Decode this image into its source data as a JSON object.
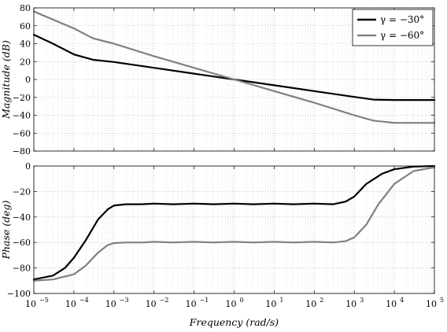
{
  "chart_data": [
    {
      "type": "line",
      "ylabel": "Magnitude (dB)",
      "xscale": "log",
      "xlim": [
        1e-05,
        100000.0
      ],
      "ylim": [
        -80,
        80
      ],
      "yticks": [
        -80,
        -60,
        -40,
        -20,
        0,
        20,
        40,
        60,
        80
      ],
      "ytick_labels": [
        "−80",
        "−60",
        "−40",
        "−20",
        "0",
        "20",
        "40",
        "60",
        "80"
      ],
      "grid": true,
      "legend": "top-right",
      "series": [
        {
          "name": "γ = −30°",
          "color": "#000000",
          "x": [
            1e-05,
            3e-05,
            0.0001,
            0.0003,
            0.001,
            0.01,
            0.1,
            1,
            10,
            100,
            1000,
            3000,
            10000,
            100000
          ],
          "y": [
            50,
            40,
            28,
            22,
            19.5,
            13,
            6.5,
            0,
            -6.5,
            -13,
            -19.5,
            -22.5,
            -23,
            -23
          ]
        },
        {
          "name": "γ = −60°",
          "color": "#808080",
          "x": [
            1e-05,
            0.0001,
            0.0003,
            0.001,
            0.01,
            0.1,
            1,
            10,
            100,
            1000,
            3000,
            10000,
            100000
          ],
          "y": [
            76,
            57,
            46,
            40,
            26,
            13,
            0,
            -13,
            -26,
            -40,
            -46,
            -48.5,
            -48.5
          ]
        }
      ]
    },
    {
      "type": "line",
      "xlabel": "Frequency (rad/s)",
      "ylabel": "Phase (deg)",
      "xscale": "log",
      "xlim": [
        1e-05,
        100000.0
      ],
      "ylim": [
        -100,
        0
      ],
      "yticks": [
        -100,
        -80,
        -60,
        -40,
        -20,
        0
      ],
      "ytick_labels": [
        "−100",
        "−80",
        "−60",
        "−40",
        "−20",
        "0"
      ],
      "xticks": [
        1e-05,
        0.0001,
        0.001,
        0.01,
        0.1,
        1,
        10,
        100,
        1000,
        10000,
        100000
      ],
      "xtick_labels": [
        {
          "base": "10",
          "exp": "−5"
        },
        {
          "base": "10",
          "exp": "−4"
        },
        {
          "base": "10",
          "exp": "−3"
        },
        {
          "base": "10",
          "exp": "−2"
        },
        {
          "base": "10",
          "exp": "−1"
        },
        {
          "base": "10",
          "exp": "0"
        },
        {
          "base": "10",
          "exp": "1"
        },
        {
          "base": "10",
          "exp": "2"
        },
        {
          "base": "10",
          "exp": "3"
        },
        {
          "base": "10",
          "exp": "4"
        },
        {
          "base": "10",
          "exp": "5"
        }
      ],
      "grid": true,
      "series": [
        {
          "name": "γ = −30°",
          "color": "#000000",
          "x": [
            1e-05,
            3e-05,
            6e-05,
            0.0001,
            0.0002,
            0.0004,
            0.0007,
            0.001,
            0.002,
            0.005,
            0.01,
            0.03,
            0.1,
            0.3,
            1,
            3,
            10,
            30,
            100,
            300,
            600,
            1000,
            2000,
            5000,
            10000,
            30000,
            100000
          ],
          "y": [
            -89,
            -86,
            -80,
            -72,
            -58,
            -42,
            -34,
            -31,
            -30,
            -30,
            -29.5,
            -30,
            -29.5,
            -30,
            -29.5,
            -30,
            -29.5,
            -30,
            -29.5,
            -30,
            -28,
            -24,
            -14,
            -6,
            -2.5,
            -0.5,
            0
          ]
        },
        {
          "name": "γ = −60°",
          "color": "#808080",
          "x": [
            1e-05,
            3e-05,
            0.0001,
            0.0002,
            0.0004,
            0.0007,
            0.001,
            0.002,
            0.005,
            0.01,
            0.03,
            0.1,
            0.3,
            1,
            3,
            10,
            30,
            100,
            300,
            600,
            1000,
            2000,
            4000,
            10000,
            30000,
            100000
          ],
          "y": [
            -90,
            -89,
            -85,
            -78,
            -68,
            -62,
            -60.5,
            -60,
            -60,
            -59.5,
            -60,
            -59.5,
            -60,
            -59.5,
            -60,
            -59.5,
            -60,
            -59.5,
            -60,
            -59,
            -56,
            -46,
            -30,
            -14,
            -4,
            -1
          ]
        }
      ]
    }
  ]
}
